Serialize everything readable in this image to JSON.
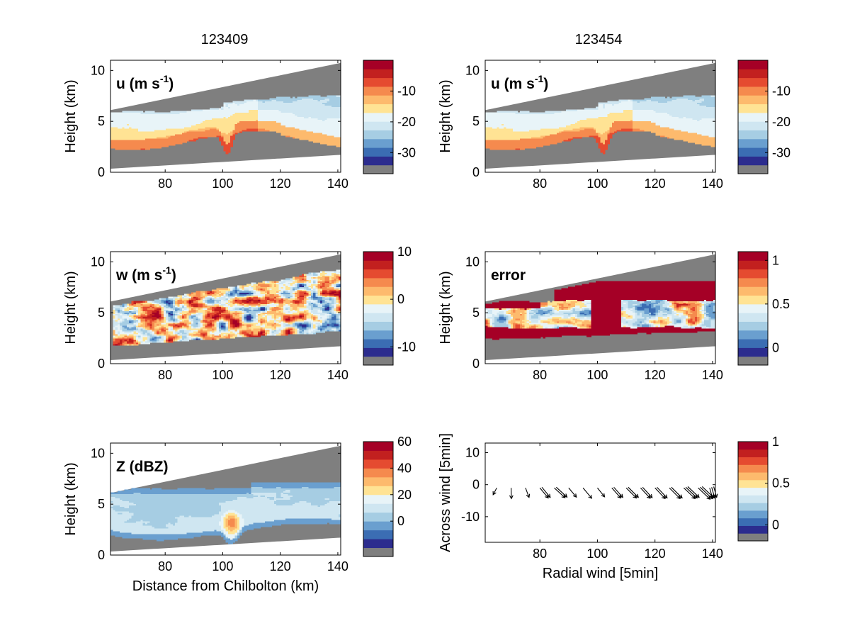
{
  "figure": {
    "titles": [
      "123409",
      "123454"
    ]
  },
  "colors": {
    "missing": "#7f7f7f",
    "scale": [
      "#313695",
      "#4575b4",
      "#74add1",
      "#abd9e9",
      "#d6ebf3",
      "#e0f3f8",
      "#fee090",
      "#fdae61",
      "#f46d43",
      "#d73027",
      "#a50026"
    ],
    "scale_ordered_low_to_high": [
      "#2c2c8e",
      "#3b6db3",
      "#6a9fcf",
      "#a6cde3",
      "#cfe6f1",
      "#e8f4f8",
      "#ffe394",
      "#fdba6d",
      "#f58a4e",
      "#e54b30",
      "#c2201f",
      "#a50026"
    ]
  },
  "chart_data": [
    {
      "type": "heatmap",
      "panel": "top-left",
      "title": "123409",
      "tag": "u (m s",
      "tag_sup": "-1",
      "tag_close": ")",
      "xlabel": "",
      "ylabel": "Height (km)",
      "xlim": [
        61,
        141
      ],
      "ylim": [
        0,
        11
      ],
      "xticks": [
        80,
        100,
        120,
        140
      ],
      "yticks": [
        0,
        5,
        10
      ],
      "colorbar": {
        "min": -34,
        "max": 0,
        "ticks": [
          -30,
          -20,
          -10
        ],
        "nlevels": 12
      },
      "field": "u"
    },
    {
      "type": "heatmap",
      "panel": "top-right",
      "title": "123454",
      "tag": "u (m s",
      "tag_sup": "-1",
      "tag_close": ")",
      "xlabel": "",
      "ylabel": "Height (km)",
      "xlim": [
        61,
        141
      ],
      "ylim": [
        0,
        11
      ],
      "xticks": [
        80,
        100,
        120,
        140
      ],
      "yticks": [
        0,
        5,
        10
      ],
      "colorbar": {
        "min": -34,
        "max": 0,
        "ticks": [
          -30,
          -20,
          -10
        ],
        "nlevels": 12
      },
      "field": "u2"
    },
    {
      "type": "heatmap",
      "panel": "middle-left",
      "title": "",
      "tag": "w (m s",
      "tag_sup": "-1",
      "tag_close": ")",
      "xlabel": "",
      "ylabel": "Height (km)",
      "xlim": [
        61,
        141
      ],
      "ylim": [
        0,
        11
      ],
      "xticks": [
        80,
        100,
        120,
        140
      ],
      "yticks": [
        0,
        5,
        10
      ],
      "colorbar": {
        "min": -12,
        "max": 10,
        "ticks": [
          -10,
          0,
          10
        ],
        "nlevels": 12
      },
      "field": "w"
    },
    {
      "type": "heatmap",
      "panel": "middle-right",
      "title": "",
      "tag": "error",
      "tag_sup": "",
      "tag_close": "",
      "xlabel": "",
      "ylabel": "Height (km)",
      "xlim": [
        61,
        141
      ],
      "ylim": [
        0,
        11
      ],
      "xticks": [
        80,
        100,
        120,
        140
      ],
      "yticks": [
        0,
        5,
        10
      ],
      "colorbar": {
        "min": -0.1,
        "max": 1.1,
        "ticks": [
          0,
          0.5,
          1
        ],
        "nlevels": 12
      },
      "field": "error"
    },
    {
      "type": "heatmap",
      "panel": "bottom-left",
      "title": "",
      "tag": "Z (dBZ)",
      "tag_sup": "",
      "tag_close": "",
      "xlabel": "Distance from Chilbolton (km)",
      "ylabel": "Height (km)",
      "xlim": [
        61,
        141
      ],
      "ylim": [
        0,
        11
      ],
      "xticks": [
        80,
        100,
        120,
        140
      ],
      "yticks": [
        0,
        5,
        10
      ],
      "colorbar": {
        "min": -20,
        "max": 60,
        "ticks": [
          0,
          20,
          40,
          60
        ],
        "nlevels": 12
      },
      "field": "Z"
    },
    {
      "type": "scatter",
      "panel": "bottom-right",
      "title": "",
      "tag": "",
      "xlabel": "Radial wind [5min]",
      "ylabel": "Across wind [5min]",
      "xlim": [
        61,
        141
      ],
      "ylim": [
        -18,
        13
      ],
      "xticks": [
        80,
        100,
        120,
        140
      ],
      "yticks": [
        -10,
        0,
        10
      ],
      "yticklabels": [
        "-10",
        "0",
        "10"
      ],
      "colorbar": {
        "min": -0.1,
        "max": 1.0,
        "ticks": [
          0,
          0.5,
          1
        ],
        "nlevels": 12
      },
      "arrows": [
        {
          "x": 65,
          "y": -1,
          "dx": -1.2,
          "dy": -2.3,
          "n": 1
        },
        {
          "x": 70,
          "y": -1,
          "dx": 0.1,
          "dy": -3.6,
          "n": 1
        },
        {
          "x": 75,
          "y": -1,
          "dx": 1.2,
          "dy": -3.2,
          "n": 1
        },
        {
          "x": 80,
          "y": -1,
          "dx": 2.8,
          "dy": -3.4,
          "n": 2
        },
        {
          "x": 85,
          "y": -1,
          "dx": 3.6,
          "dy": -3.3,
          "n": 2
        },
        {
          "x": 90,
          "y": -1,
          "dx": 2.6,
          "dy": -3.1,
          "n": 1
        },
        {
          "x": 95,
          "y": -1,
          "dx": 2.9,
          "dy": -3.5,
          "n": 1
        },
        {
          "x": 100,
          "y": -1,
          "dx": 2.4,
          "dy": -3.0,
          "n": 1
        },
        {
          "x": 105,
          "y": -1,
          "dx": 3.0,
          "dy": -3.4,
          "n": 2
        },
        {
          "x": 110,
          "y": -1,
          "dx": 3.4,
          "dy": -3.4,
          "n": 2
        },
        {
          "x": 115,
          "y": -1,
          "dx": 3.2,
          "dy": -3.5,
          "n": 2
        },
        {
          "x": 120,
          "y": -1,
          "dx": 3.4,
          "dy": -3.6,
          "n": 2
        },
        {
          "x": 125,
          "y": -1,
          "dx": 3.6,
          "dy": -3.6,
          "n": 2
        },
        {
          "x": 130,
          "y": -1,
          "dx": 3.8,
          "dy": -3.6,
          "n": 3
        },
        {
          "x": 135,
          "y": -1,
          "dx": 4.0,
          "dy": -3.8,
          "n": 3
        },
        {
          "x": 139,
          "y": -1,
          "dx": 1.0,
          "dy": -3.6,
          "n": 3
        }
      ]
    }
  ]
}
